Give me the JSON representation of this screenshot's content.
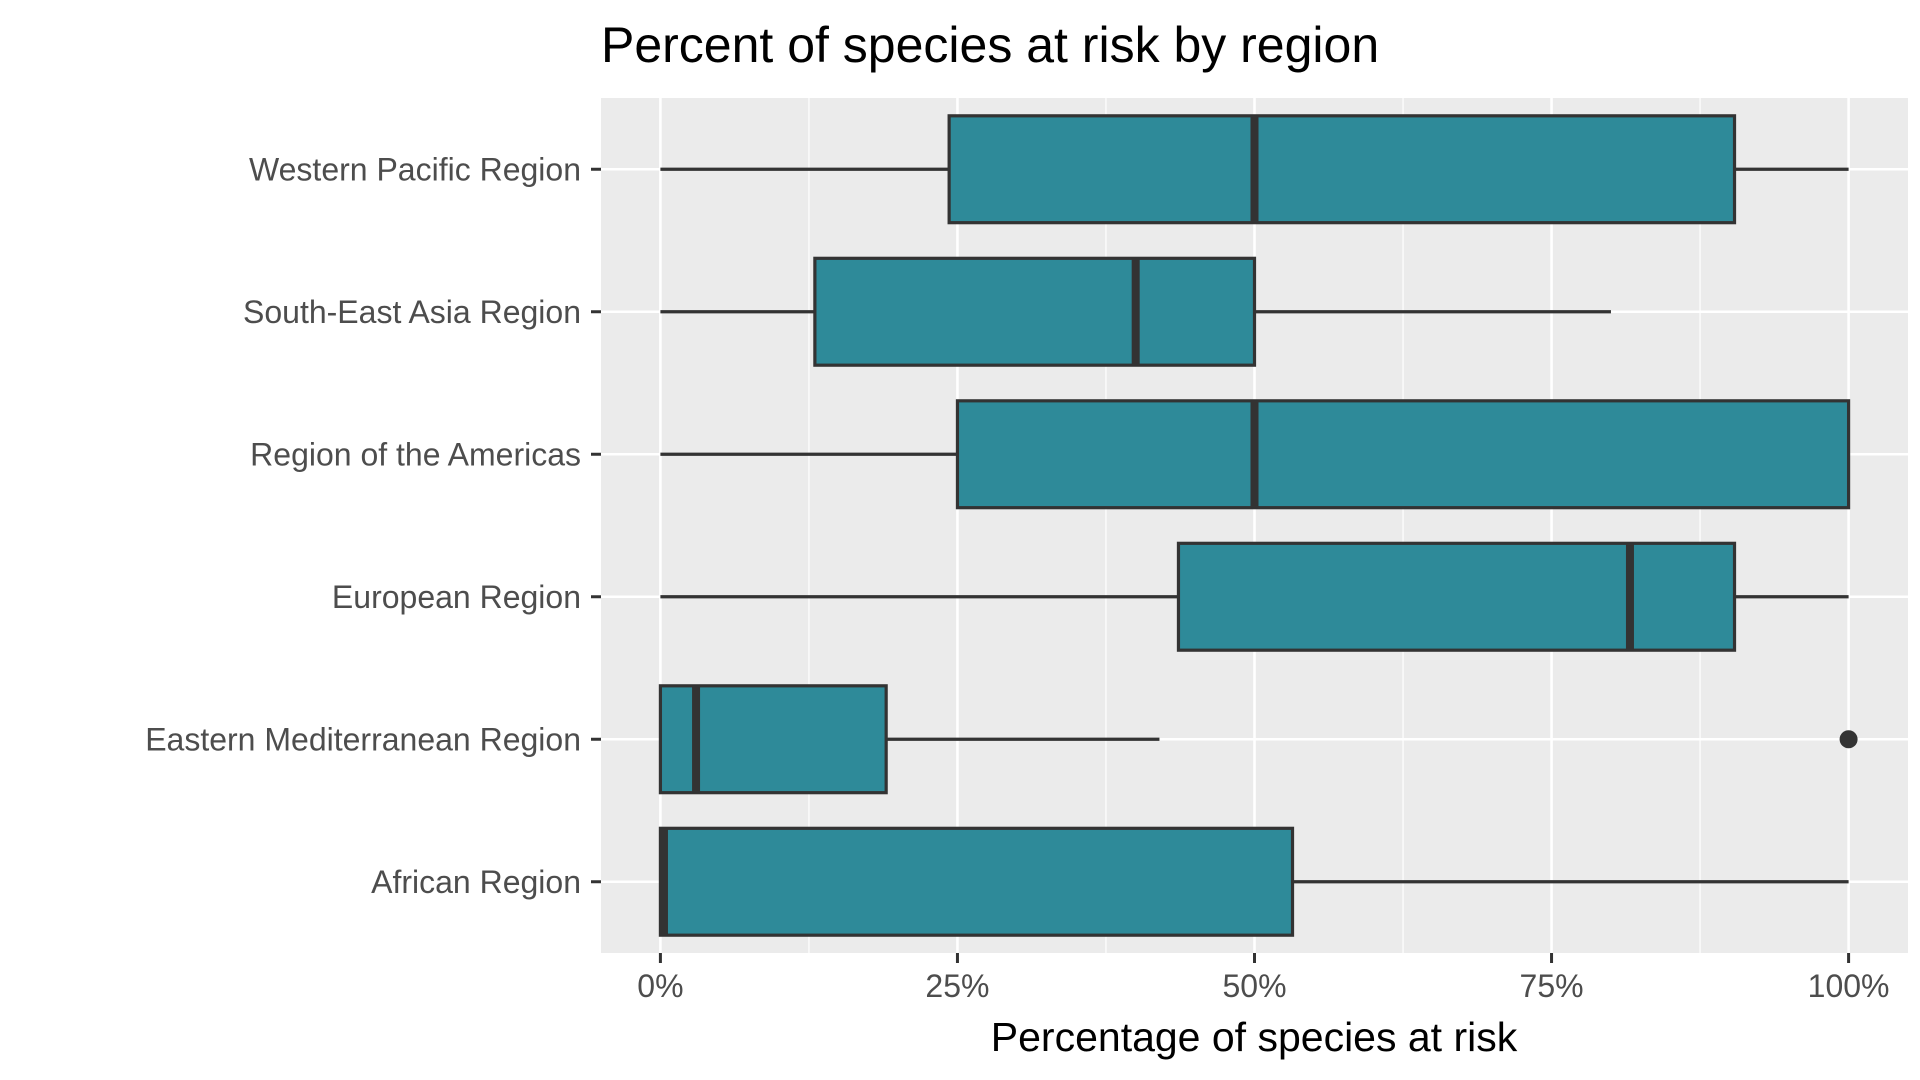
{
  "chart_data": {
    "type": "boxplot",
    "orientation": "horizontal",
    "title": "Percent of species at risk by region",
    "xlabel": "Percentage of species at risk",
    "ylabel": "",
    "xlim": [
      -5,
      105
    ],
    "xticks": [
      0,
      25,
      50,
      75,
      100
    ],
    "xtick_labels": [
      "0%",
      "25%",
      "50%",
      "75%",
      "100%"
    ],
    "grid": true,
    "legend": "none",
    "colors": {
      "box_fill": "#2e8a99",
      "box_stroke": "#333333",
      "panel_bg": "#ebebeb",
      "grid": "#ffffff",
      "outlier": "#333333"
    },
    "categories": [
      "African Region",
      "Eastern Mediterranean Region",
      "European Region",
      "Region of the Americas",
      "South-East Asia Region",
      "Western Pacific Region"
    ],
    "boxes": [
      {
        "category": "African Region",
        "whisker_low": 0,
        "q1": 0,
        "median": 0.3,
        "q3": 53.2,
        "whisker_high": 100,
        "outliers": []
      },
      {
        "category": "Eastern Mediterranean Region",
        "whisker_low": 0,
        "q1": 0,
        "median": 3,
        "q3": 19,
        "whisker_high": 42,
        "outliers": [
          100
        ]
      },
      {
        "category": "European Region",
        "whisker_low": 0,
        "q1": 43.6,
        "median": 81.6,
        "q3": 90.4,
        "whisker_high": 100,
        "outliers": []
      },
      {
        "category": "Region of the Americas",
        "whisker_low": 0,
        "q1": 25,
        "median": 50,
        "q3": 100,
        "whisker_high": 100,
        "outliers": []
      },
      {
        "category": "South-East Asia Region",
        "whisker_low": 0,
        "q1": 13,
        "median": 40,
        "q3": 50,
        "whisker_high": 80,
        "outliers": []
      },
      {
        "category": "Western Pacific Region",
        "whisker_low": 0,
        "q1": 24.3,
        "median": 50,
        "q3": 90.4,
        "whisker_high": 100,
        "outliers": []
      }
    ]
  }
}
